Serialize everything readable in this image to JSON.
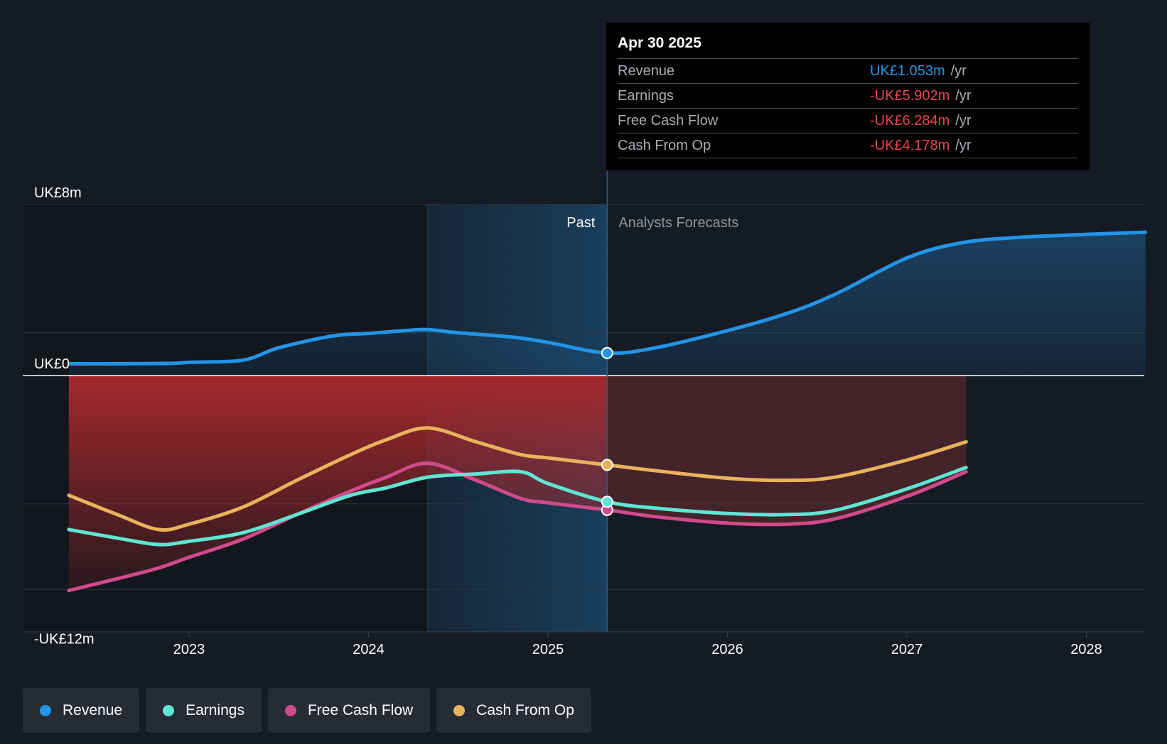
{
  "colors": {
    "revenue": "#2394e6",
    "earnings": "#5ee6d3",
    "fcf": "#d04a8c",
    "cfo": "#e9b25c",
    "negative": "#e8464a",
    "background": "#151b24"
  },
  "tooltip": {
    "date": "Apr 30 2025",
    "rows": [
      {
        "label": "Revenue",
        "value": "UK£1.053m",
        "unit": "/yr",
        "color": "#2394e6"
      },
      {
        "label": "Earnings",
        "value": "-UK£5.902m",
        "unit": "/yr",
        "color": "#e8464a"
      },
      {
        "label": "Free Cash Flow",
        "value": "-UK£6.284m",
        "unit": "/yr",
        "color": "#e8464a"
      },
      {
        "label": "Cash From Op",
        "value": "-UK£4.178m",
        "unit": "/yr",
        "color": "#e8464a"
      }
    ]
  },
  "legend": [
    {
      "label": "Revenue",
      "color": "#2394e6"
    },
    {
      "label": "Earnings",
      "color": "#5ee6d3"
    },
    {
      "label": "Free Cash Flow",
      "color": "#d04a8c"
    },
    {
      "label": "Cash From Op",
      "color": "#e9b25c"
    }
  ],
  "chart_data": {
    "type": "line",
    "title": "",
    "xlabel": "",
    "ylabel": "",
    "ylim": [
      -12,
      8
    ],
    "xlim": [
      2022.1,
      2028.33
    ],
    "y_axis_labels": [
      "UK£8m",
      "UK£0",
      "-UK£12m"
    ],
    "x_ticks": [
      2023,
      2024,
      2025,
      2026,
      2027,
      2028
    ],
    "x_tick_labels": [
      "2023",
      "2024",
      "2025",
      "2026",
      "2027",
      "2028"
    ],
    "past_label": "Past",
    "forecast_label": "Analysts Forecasts",
    "highlight_start": 2024.33,
    "divider_x": 2025.33,
    "series": [
      {
        "name": "Revenue",
        "x": [
          2022.33,
          2022.6,
          2022.9,
          2023.0,
          2023.3,
          2023.5,
          2023.8,
          2024.0,
          2024.2,
          2024.33,
          2024.5,
          2024.8,
          2025.0,
          2025.33,
          2025.6,
          2026.0,
          2026.33,
          2026.6,
          2027.0,
          2027.3,
          2027.6,
          2028.0,
          2028.33
        ],
        "values": [
          0.55,
          0.55,
          0.57,
          0.62,
          0.72,
          1.3,
          1.85,
          1.97,
          2.1,
          2.15,
          2.0,
          1.8,
          1.55,
          1.053,
          1.3,
          2.1,
          2.9,
          3.8,
          5.5,
          6.2,
          6.45,
          6.6,
          6.7
        ]
      },
      {
        "name": "Earnings",
        "x": [
          2022.33,
          2022.6,
          2022.83,
          2023.0,
          2023.3,
          2023.6,
          2023.9,
          2024.1,
          2024.33,
          2024.6,
          2024.85,
          2025.0,
          2025.33,
          2025.6,
          2026.0,
          2026.33,
          2026.6,
          2027.0,
          2027.33
        ],
        "values": [
          -7.2,
          -7.6,
          -7.9,
          -7.75,
          -7.35,
          -6.5,
          -5.6,
          -5.25,
          -4.75,
          -4.6,
          -4.5,
          -5.05,
          -5.902,
          -6.2,
          -6.45,
          -6.5,
          -6.3,
          -5.3,
          -4.3
        ]
      },
      {
        "name": "Free Cash Flow",
        "x": [
          2022.33,
          2022.6,
          2022.83,
          2023.0,
          2023.3,
          2023.6,
          2023.9,
          2024.1,
          2024.33,
          2024.6,
          2024.85,
          2025.0,
          2025.33,
          2025.6,
          2026.0,
          2026.33,
          2026.6,
          2027.0,
          2027.33
        ],
        "values": [
          -10.05,
          -9.5,
          -9.0,
          -8.5,
          -7.65,
          -6.5,
          -5.4,
          -4.75,
          -4.1,
          -4.9,
          -5.75,
          -5.95,
          -6.284,
          -6.6,
          -6.9,
          -6.95,
          -6.7,
          -5.65,
          -4.5
        ]
      },
      {
        "name": "Cash From Op",
        "x": [
          2022.33,
          2022.6,
          2022.83,
          2023.0,
          2023.3,
          2023.6,
          2023.9,
          2024.1,
          2024.33,
          2024.6,
          2024.85,
          2025.0,
          2025.33,
          2025.6,
          2026.0,
          2026.33,
          2026.6,
          2027.0,
          2027.33
        ],
        "values": [
          -5.6,
          -6.5,
          -7.2,
          -6.95,
          -6.15,
          -4.9,
          -3.7,
          -3.0,
          -2.45,
          -3.1,
          -3.7,
          -3.85,
          -4.178,
          -4.45,
          -4.8,
          -4.9,
          -4.75,
          -3.95,
          -3.1
        ]
      }
    ]
  }
}
